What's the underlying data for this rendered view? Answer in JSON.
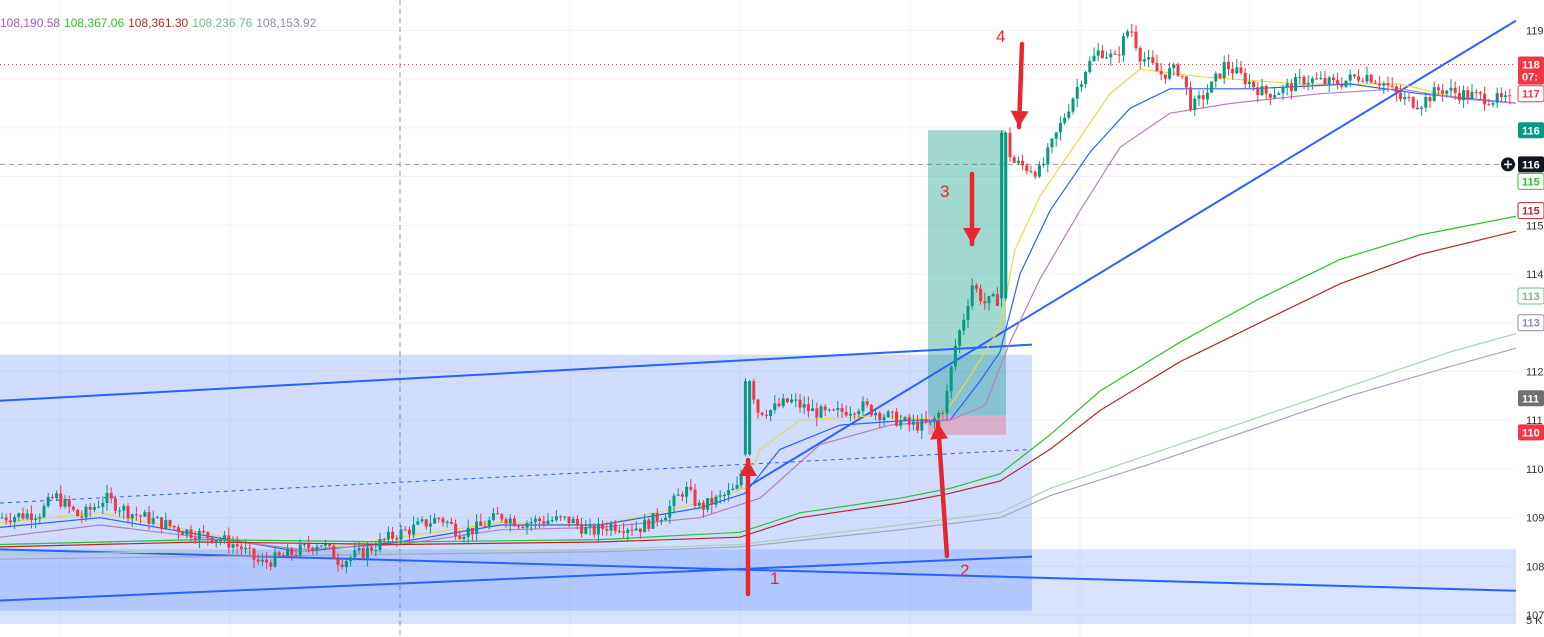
{
  "ma_values": [
    {
      "text": "108,190.58",
      "color": "#9c5fb5"
    },
    {
      "text": "108,367.06",
      "color": "#2fbf2f"
    },
    {
      "text": "108,361.30",
      "color": "#b22a2a"
    },
    {
      "text": "108,236.76",
      "color": "#78b78a"
    },
    {
      "text": "108,153.92",
      "color": "#8e8aa8"
    }
  ],
  "price_tags": [
    {
      "y": 118.3,
      "text": "118",
      "bg": "#f23645",
      "fg": "#ffffff",
      "style": "fill"
    },
    {
      "y": 118.05,
      "text": "07:",
      "bg": "#f23645",
      "fg": "#ffffff",
      "style": "fill"
    },
    {
      "y": 117.7,
      "text": "117",
      "bg": "#ffffff",
      "fg": "#f23645",
      "style": "outline"
    },
    {
      "y": 116.95,
      "text": "116",
      "bg": "#089981",
      "fg": "#ffffff",
      "style": "fill"
    },
    {
      "y": 116.25,
      "text": "116",
      "bg": "#131722",
      "fg": "#ffffff",
      "style": "fill"
    },
    {
      "y": 115.9,
      "text": "115",
      "bg": "#ffffff",
      "fg": "#2fbf2f",
      "style": "outline"
    },
    {
      "y": 115.3,
      "text": "115",
      "bg": "#ffffff",
      "fg": "#b22a2a",
      "style": "outline"
    },
    {
      "y": 113.55,
      "text": "113",
      "bg": "#ffffff",
      "fg": "#78b78a",
      "style": "outline"
    },
    {
      "y": 113.0,
      "text": "113",
      "bg": "#ffffff",
      "fg": "#8e8aa8",
      "style": "outline"
    },
    {
      "y": 111.45,
      "text": "111",
      "bg": "#707070",
      "fg": "#ffffff",
      "style": "fill"
    },
    {
      "y": 110.75,
      "text": "110",
      "bg": "#f23645",
      "fg": "#ffffff",
      "style": "fill"
    }
  ],
  "annotations": [
    {
      "label": "1",
      "x": 770,
      "y": 584
    },
    {
      "label": "2",
      "x": 960,
      "y": 576
    },
    {
      "label": "3",
      "x": 940,
      "y": 197
    },
    {
      "label": "4",
      "x": 996,
      "y": 42
    }
  ],
  "chart_data": {
    "type": "candlestick",
    "ylim": [
      106.9,
      119.5
    ],
    "y_tick_labels": [
      "119",
      "117",
      "115",
      "114",
      "112",
      "111",
      "110",
      "109",
      "108",
      "107",
      "5 K"
    ],
    "y_ticks": [
      119,
      118,
      117,
      116,
      115,
      114,
      113,
      112,
      111,
      110,
      109,
      108,
      107
    ],
    "grid": true,
    "colors": {
      "up": "#089981",
      "down": "#f23645",
      "channel": "#2962ff"
    },
    "price_path": [
      [
        0,
        109.0
      ],
      [
        40,
        109.1
      ],
      [
        55,
        109.45
      ],
      [
        80,
        109.0
      ],
      [
        105,
        109.4
      ],
      [
        130,
        109.1
      ],
      [
        160,
        108.9
      ],
      [
        190,
        108.7
      ],
      [
        215,
        108.6
      ],
      [
        240,
        108.4
      ],
      [
        260,
        108.05
      ],
      [
        290,
        108.25
      ],
      [
        320,
        108.5
      ],
      [
        340,
        108.1
      ],
      [
        365,
        108.3
      ],
      [
        390,
        108.6
      ],
      [
        415,
        108.8
      ],
      [
        440,
        109.0
      ],
      [
        460,
        108.7
      ],
      [
        480,
        108.8
      ],
      [
        500,
        109.05
      ],
      [
        520,
        108.9
      ],
      [
        545,
        108.95
      ],
      [
        570,
        108.95
      ],
      [
        590,
        108.7
      ],
      [
        610,
        108.85
      ],
      [
        640,
        108.8
      ],
      [
        665,
        109.1
      ],
      [
        685,
        109.6
      ],
      [
        700,
        109.2
      ],
      [
        720,
        109.4
      ],
      [
        738,
        109.6
      ],
      [
        745,
        110.3
      ],
      [
        750,
        111.8
      ],
      [
        758,
        111.2
      ],
      [
        770,
        111.2
      ],
      [
        790,
        111.4
      ],
      [
        810,
        111.2
      ],
      [
        830,
        111.1
      ],
      [
        860,
        111.3
      ],
      [
        885,
        111.1
      ],
      [
        910,
        110.9
      ],
      [
        930,
        110.9
      ],
      [
        945,
        111.3
      ],
      [
        955,
        112.5
      ],
      [
        965,
        113.2
      ],
      [
        972,
        113.8
      ],
      [
        985,
        113.4
      ],
      [
        1000,
        113.5
      ],
      [
        1003,
        117.0
      ],
      [
        1012,
        116.3
      ],
      [
        1025,
        116.2
      ],
      [
        1040,
        116.1
      ],
      [
        1055,
        116.8
      ],
      [
        1070,
        117.5
      ],
      [
        1085,
        118.2
      ],
      [
        1100,
        118.6
      ],
      [
        1115,
        118.4
      ],
      [
        1130,
        119.1
      ],
      [
        1140,
        118.5
      ],
      [
        1160,
        118.1
      ],
      [
        1180,
        118.2
      ],
      [
        1192,
        117.4
      ],
      [
        1210,
        117.8
      ],
      [
        1225,
        118.3
      ],
      [
        1245,
        118.0
      ],
      [
        1265,
        117.7
      ],
      [
        1285,
        117.8
      ],
      [
        1305,
        118.0
      ],
      [
        1335,
        117.9
      ],
      [
        1365,
        118.1
      ],
      [
        1385,
        117.9
      ],
      [
        1400,
        117.6
      ],
      [
        1420,
        117.5
      ],
      [
        1440,
        117.8
      ],
      [
        1460,
        117.7
      ],
      [
        1490,
        117.6
      ],
      [
        1520,
        117.5
      ]
    ],
    "moving_averages": [
      {
        "color": "#e8d84a",
        "path": [
          [
            0,
            108.9
          ],
          [
            100,
            109.1
          ],
          [
            200,
            108.7
          ],
          [
            300,
            108.3
          ],
          [
            400,
            108.6
          ],
          [
            500,
            108.9
          ],
          [
            600,
            108.85
          ],
          [
            700,
            109.3
          ],
          [
            745,
            109.6
          ],
          [
            760,
            110.4
          ],
          [
            800,
            111.0
          ],
          [
            880,
            111.1
          ],
          [
            940,
            111.0
          ],
          [
            970,
            111.9
          ],
          [
            1000,
            112.9
          ],
          [
            1015,
            114.5
          ],
          [
            1040,
            115.6
          ],
          [
            1080,
            116.8
          ],
          [
            1110,
            117.7
          ],
          [
            1140,
            118.2
          ],
          [
            1200,
            118.05
          ],
          [
            1300,
            117.9
          ],
          [
            1400,
            117.9
          ],
          [
            1460,
            117.6
          ],
          [
            1520,
            117.5
          ]
        ]
      },
      {
        "color": "#2962ff",
        "path": [
          [
            0,
            108.8
          ],
          [
            100,
            109.0
          ],
          [
            200,
            108.65
          ],
          [
            300,
            108.3
          ],
          [
            400,
            108.5
          ],
          [
            500,
            108.85
          ],
          [
            600,
            108.85
          ],
          [
            700,
            109.2
          ],
          [
            745,
            109.5
          ],
          [
            780,
            110.4
          ],
          [
            840,
            110.9
          ],
          [
            910,
            111.0
          ],
          [
            950,
            111.0
          ],
          [
            980,
            111.8
          ],
          [
            1000,
            112.4
          ],
          [
            1020,
            114.0
          ],
          [
            1050,
            115.3
          ],
          [
            1090,
            116.5
          ],
          [
            1130,
            117.4
          ],
          [
            1170,
            117.8
          ],
          [
            1250,
            117.8
          ],
          [
            1350,
            117.9
          ],
          [
            1420,
            117.7
          ],
          [
            1520,
            117.5
          ]
        ]
      },
      {
        "color": "#b87fc0",
        "path": [
          [
            0,
            108.6
          ],
          [
            100,
            108.85
          ],
          [
            200,
            108.6
          ],
          [
            300,
            108.35
          ],
          [
            400,
            108.45
          ],
          [
            500,
            108.75
          ],
          [
            600,
            108.8
          ],
          [
            700,
            109.0
          ],
          [
            760,
            109.4
          ],
          [
            820,
            110.5
          ],
          [
            890,
            110.9
          ],
          [
            950,
            111.0
          ],
          [
            985,
            111.3
          ],
          [
            1010,
            112.6
          ],
          [
            1040,
            113.9
          ],
          [
            1080,
            115.3
          ],
          [
            1120,
            116.6
          ],
          [
            1170,
            117.3
          ],
          [
            1230,
            117.5
          ],
          [
            1320,
            117.7
          ],
          [
            1400,
            117.8
          ],
          [
            1460,
            117.6
          ],
          [
            1520,
            117.5
          ]
        ]
      },
      {
        "color": "#2fbf2f",
        "path": [
          [
            0,
            108.45
          ],
          [
            200,
            108.55
          ],
          [
            400,
            108.5
          ],
          [
            600,
            108.55
          ],
          [
            740,
            108.7
          ],
          [
            800,
            109.1
          ],
          [
            900,
            109.4
          ],
          [
            950,
            109.6
          ],
          [
            1000,
            109.9
          ],
          [
            1050,
            110.7
          ],
          [
            1100,
            111.6
          ],
          [
            1180,
            112.6
          ],
          [
            1260,
            113.5
          ],
          [
            1340,
            114.3
          ],
          [
            1420,
            114.8
          ],
          [
            1520,
            115.2
          ]
        ]
      },
      {
        "color": "#b22a2a",
        "path": [
          [
            0,
            108.4
          ],
          [
            200,
            108.5
          ],
          [
            400,
            108.45
          ],
          [
            600,
            108.5
          ],
          [
            740,
            108.6
          ],
          [
            800,
            109.0
          ],
          [
            900,
            109.3
          ],
          [
            950,
            109.5
          ],
          [
            1000,
            109.75
          ],
          [
            1050,
            110.4
          ],
          [
            1100,
            111.2
          ],
          [
            1180,
            112.2
          ],
          [
            1260,
            113.0
          ],
          [
            1340,
            113.8
          ],
          [
            1420,
            114.4
          ],
          [
            1520,
            114.9
          ]
        ]
      },
      {
        "color": "#a6d4b0",
        "path": [
          [
            0,
            108.25
          ],
          [
            200,
            108.3
          ],
          [
            400,
            108.3
          ],
          [
            600,
            108.35
          ],
          [
            740,
            108.45
          ],
          [
            900,
            108.85
          ],
          [
            1000,
            109.1
          ],
          [
            1050,
            109.6
          ],
          [
            1150,
            110.3
          ],
          [
            1250,
            111.0
          ],
          [
            1350,
            111.7
          ],
          [
            1450,
            112.4
          ],
          [
            1520,
            112.8
          ]
        ]
      },
      {
        "color": "#a8a3c4",
        "path": [
          [
            0,
            108.15
          ],
          [
            200,
            108.2
          ],
          [
            400,
            108.25
          ],
          [
            600,
            108.3
          ],
          [
            740,
            108.4
          ],
          [
            900,
            108.75
          ],
          [
            1000,
            109.0
          ],
          [
            1050,
            109.45
          ],
          [
            1150,
            110.1
          ],
          [
            1250,
            110.8
          ],
          [
            1350,
            111.5
          ],
          [
            1450,
            112.1
          ],
          [
            1520,
            112.5
          ]
        ]
      }
    ],
    "channel": {
      "upper": [
        [
          0,
          111.4
        ],
        [
          1032,
          112.55
        ]
      ],
      "lower": [
        [
          0,
          107.3
        ],
        [
          1032,
          108.2
        ]
      ],
      "mid": [
        [
          0,
          109.3
        ],
        [
          1032,
          110.4
        ]
      ],
      "rect_x": [
        0,
        1032
      ],
      "rect_ylim": [
        107.3,
        112.55
      ]
    },
    "support_line": [
      [
        0,
        108.35
      ],
      [
        1516,
        107.5
      ]
    ],
    "trend_line": [
      [
        745,
        109.6
      ],
      [
        1516,
        119.2
      ]
    ],
    "position": {
      "x": [
        928,
        1006
      ],
      "entry": 111.1,
      "target": 116.95,
      "stop": 110.7
    }
  }
}
